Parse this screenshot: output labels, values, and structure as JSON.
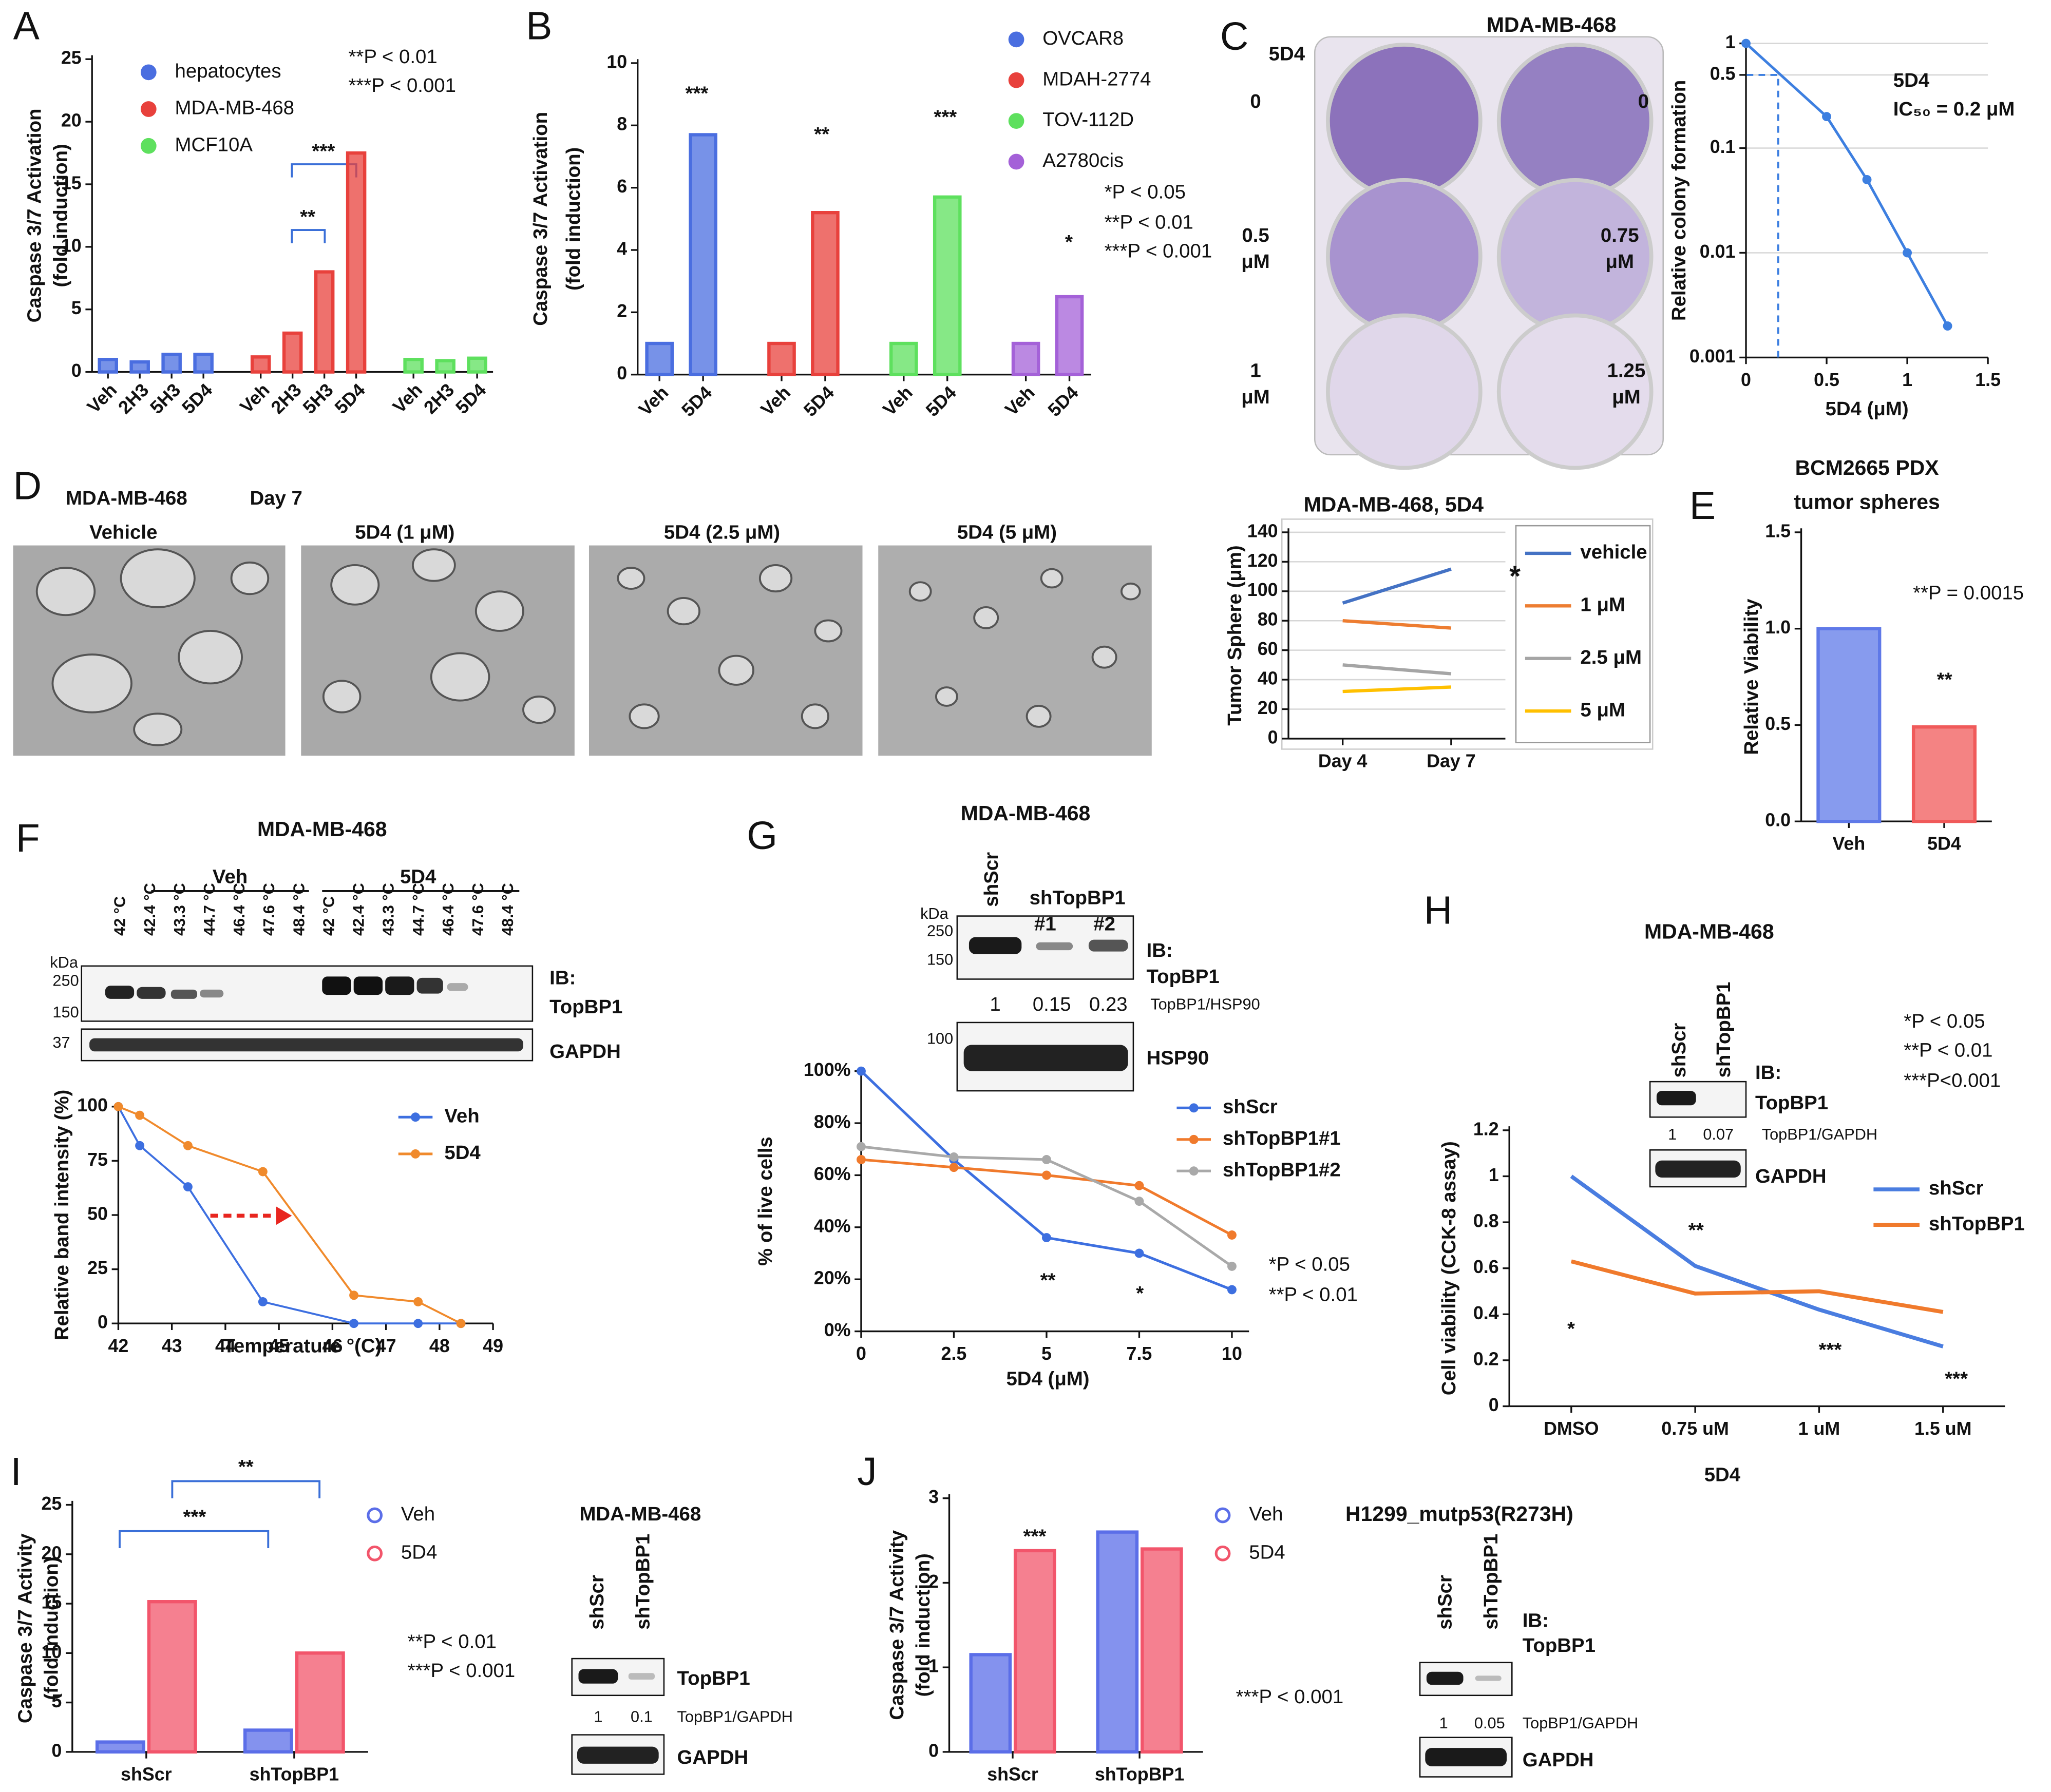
{
  "chart_data": [
    {
      "type": "bar",
      "panel": "A",
      "ylabel": [
        "Caspase 3/7 Activation",
        "(fold induction)"
      ],
      "categories": [
        "Veh",
        "2H3",
        "5H3",
        "5D4",
        "Veh",
        "2H3",
        "5H3",
        "5D4",
        "Veh",
        "2H3",
        "5D4"
      ],
      "series": [
        {
          "name": "hepatocytes",
          "color": "#4a6ee0",
          "values": [
            1.0,
            0.8,
            1.4,
            1.4,
            null,
            null,
            null,
            null,
            null,
            null,
            null
          ]
        },
        {
          "name": "MDA-MB-468",
          "color": "#e8413c",
          "values": [
            null,
            null,
            null,
            null,
            1.2,
            3.1,
            8.0,
            17.5,
            null,
            null,
            null
          ]
        },
        {
          "name": "MCF10A",
          "color": "#5ee05e",
          "values": [
            null,
            null,
            null,
            null,
            null,
            null,
            null,
            null,
            1.0,
            0.9,
            1.1
          ]
        }
      ],
      "ylim": [
        0,
        25
      ],
      "yticks": [
        0,
        5,
        10,
        15,
        20,
        25
      ],
      "legend": true,
      "texts": [
        "**P < 0.01",
        "***P < 0.001",
        "***",
        "**"
      ]
    },
    {
      "type": "bar",
      "panel": "B",
      "ylabel": [
        "Caspase 3/7 Activation",
        "(fold induction)"
      ],
      "categories": [
        "Veh",
        "5D4",
        "Veh",
        "5D4",
        "Veh",
        "5D4",
        "Veh",
        "5D4"
      ],
      "series": [
        {
          "name": "OVCAR8",
          "color": "#4a6ee0",
          "values": [
            1.0,
            7.7,
            null,
            null,
            null,
            null,
            null,
            null
          ]
        },
        {
          "name": "MDAH-2774",
          "color": "#e8413c",
          "values": [
            null,
            null,
            1.0,
            5.2,
            null,
            null,
            null,
            null
          ]
        },
        {
          "name": "TOV-112D",
          "color": "#5ee05e",
          "values": [
            null,
            null,
            null,
            null,
            1.0,
            5.7,
            null,
            null
          ]
        },
        {
          "name": "A2780cis",
          "color": "#a461d8",
          "values": [
            null,
            null,
            null,
            null,
            null,
            null,
            1.0,
            2.5
          ]
        }
      ],
      "ylim": [
        0,
        10
      ],
      "yticks": [
        0,
        2,
        4,
        6,
        8,
        10
      ],
      "legend": true,
      "texts": [
        "***",
        "**",
        "***",
        "*",
        "*P < 0.05",
        "**P < 0.01",
        "***P < 0.001"
      ]
    },
    {
      "type": "line",
      "panel": "C",
      "title": "MDA-MB-468",
      "yscale": "log",
      "x": [
        0,
        0.5,
        0.75,
        1,
        1.25
      ],
      "values": [
        1,
        0.2,
        0.05,
        0.01,
        0.002
      ],
      "color": "#3d7fe0",
      "xlim": [
        0,
        1.5
      ],
      "xticks": [
        0,
        0.5,
        1,
        1.5
      ],
      "ylim": [
        0.001,
        1
      ],
      "yticks": [
        0.001,
        0.01,
        0.1,
        0.5,
        1
      ],
      "grid": true,
      "xlabel": "5D4 (μM)",
      "ylabel": "Relative colony formation",
      "reference_lines": [
        {
          "x": 0.2,
          "y": 0.5
        }
      ],
      "texts": [
        "5D4",
        "IC₅₀ = 0.2 μM",
        "5D4",
        "0",
        "0",
        "0.5",
        "μM",
        "0.75",
        "μM",
        "1",
        "μM",
        "1.25",
        "μM"
      ]
    },
    {
      "type": "line",
      "panel": "D",
      "title": "MDA-MB-468, 5D4",
      "categories": [
        "Day 4",
        "Day 7"
      ],
      "series": [
        {
          "name": "vehicle",
          "color": "#4472c4",
          "values": [
            92,
            115
          ]
        },
        {
          "name": "1 μM",
          "color": "#ed7d31",
          "values": [
            80,
            75
          ]
        },
        {
          "name": "2.5 μM",
          "color": "#a5a5a5",
          "values": [
            50,
            44
          ]
        },
        {
          "name": "5 μM",
          "color": "#ffc000",
          "values": [
            32,
            35
          ]
        }
      ],
      "ylim": [
        0,
        140
      ],
      "yticks": [
        0,
        20,
        40,
        60,
        80,
        100,
        120,
        140
      ],
      "grid": true,
      "legend": true,
      "ylabel": "Tumor Sphere (μm)",
      "texts": [
        "*",
        "MDA-MB-468",
        "Day 7",
        "Vehicle",
        "5D4 (1 μM)",
        "5D4 (2.5 μM)",
        "5D4 (5 μM)"
      ]
    },
    {
      "type": "bar",
      "panel": "E",
      "title": [
        "BCM2665 PDX",
        "tumor spheres"
      ],
      "categories": [
        "Veh",
        "5D4"
      ],
      "values": [
        1.0,
        0.49
      ],
      "colors": [
        "#5f79e8",
        "#f05a5a"
      ],
      "ylim": [
        0,
        1.5
      ],
      "yticks": [
        {
          "value": 0,
          "label": "0.0"
        },
        0.5,
        {
          "value": 1,
          "label": "1.0"
        },
        1.5
      ],
      "ylabel": "Relative Viability",
      "texts": [
        "**P = 0.0015",
        "**"
      ]
    },
    {
      "type": "line",
      "panel": "F",
      "title": "MDA-MB-468",
      "x": [
        42,
        42.4,
        43.3,
        44.7,
        46.4,
        47.6,
        48.4
      ],
      "series": [
        {
          "name": "Veh",
          "color": "#3d6fe0",
          "values": [
            100,
            82,
            63,
            10,
            0,
            0,
            0
          ]
        },
        {
          "name": "5D4",
          "color": "#f08a2c",
          "values": [
            100,
            96,
            82,
            70,
            13,
            10,
            0
          ]
        }
      ],
      "xlim": [
        42,
        49
      ],
      "xticks": [
        42,
        43,
        44,
        45,
        46,
        47,
        48,
        49
      ],
      "ylim": [
        0,
        100
      ],
      "yticks": [
        0,
        25,
        50,
        75,
        100
      ],
      "xlabel": "Temperature °(C)",
      "ylabel": "Relative band intensity (%)",
      "legend": true,
      "texts": [
        "Veh",
        "5D4",
        "42 °C",
        "42.4 °C",
        "43.3 °C",
        "44.7 °C",
        "46.4 °C",
        "47.6 °C",
        "48.4 °C",
        "42 °C",
        "42.4 °C",
        "43.3 °C",
        "44.7 °C",
        "46.4 °C",
        "47.6 °C",
        "48.4 °C",
        "kDa",
        "250",
        "150",
        "37",
        "IB:",
        "TopBP1",
        "GAPDH"
      ]
    },
    {
      "type": "line",
      "panel": "G",
      "title": "MDA-MB-468",
      "x": [
        0,
        2.5,
        5,
        7.5,
        10
      ],
      "series": [
        {
          "name": "shScr",
          "color": "#3d6fe0",
          "values": [
            100,
            66,
            36,
            30,
            16
          ]
        },
        {
          "name": "shTopBP1#1",
          "color": "#f07a2c",
          "values": [
            66,
            63,
            60,
            56,
            37
          ]
        },
        {
          "name": "shTopBP1#2",
          "color": "#a9a9a9",
          "values": [
            71,
            67,
            66,
            50,
            25
          ]
        }
      ],
      "xlim": [
        0,
        10
      ],
      "xticks": [
        0,
        2.5,
        5,
        7.5,
        10
      ],
      "ylim": [
        0,
        100
      ],
      "yticks": [
        {
          "value": 0,
          "label": "0%"
        },
        {
          "value": 20,
          "label": "20%"
        },
        {
          "value": 40,
          "label": "40%"
        },
        {
          "value": 60,
          "label": "60%"
        },
        {
          "value": 80,
          "label": "80%"
        },
        {
          "value": 100,
          "label": "100%"
        }
      ],
      "xlabel": "5D4 (μM)",
      "ylabel": "% of live cells",
      "legend": true,
      "texts": [
        "**",
        "*",
        "*P < 0.05",
        "**P < 0.01",
        "shScr",
        "shTopBP1",
        "#1",
        "#2",
        "kDa",
        "250",
        "150",
        "IB:",
        "TopBP1",
        "1",
        "0.15",
        "0.23",
        "TopBP1/HSP90",
        "100",
        "HSP90"
      ]
    },
    {
      "type": "line",
      "panel": "H",
      "title": "MDA-MB-468",
      "categories": [
        "DMSO",
        "0.75 uM",
        "1 uM",
        "1.5 uM"
      ],
      "series": [
        {
          "name": "shScr",
          "color": "#4a7de0",
          "values": [
            1.0,
            0.61,
            0.42,
            0.26
          ]
        },
        {
          "name": "shTopBP1",
          "color": "#f07a2c",
          "values": [
            0.63,
            0.49,
            0.5,
            0.41
          ]
        }
      ],
      "ylim": [
        0,
        1.2
      ],
      "yticks": [
        0,
        0.2,
        0.4,
        0.6,
        0.8,
        1,
        1.2
      ],
      "xlabel": "5D4",
      "ylabel": "Cell viability (CCK-8 assay)",
      "legend": true,
      "texts": [
        "*",
        "**",
        "***",
        "***",
        "*P < 0.05",
        "**P < 0.01",
        "***P<0.001",
        "shScr",
        "shTopBP1",
        "IB:",
        "TopBP1",
        "1",
        "0.07",
        "TopBP1/GAPDH",
        "GAPDH"
      ]
    },
    {
      "type": "bar",
      "panel": "I",
      "categories": [
        "shScr",
        "shTopBP1"
      ],
      "series": [
        {
          "name": "Veh",
          "color": "#5b6ee8",
          "values": [
            1.0,
            2.2
          ]
        },
        {
          "name": "5D4",
          "color": "#f2556b",
          "values": [
            15.2,
            10.0
          ]
        }
      ],
      "ylim": [
        0,
        25
      ],
      "yticks": [
        0,
        5,
        10,
        15,
        20,
        25
      ],
      "ylabel": [
        "Caspase 3/7 Activity",
        "(fold induction)"
      ],
      "legend": true,
      "texts": [
        "***",
        "**",
        "**P < 0.01",
        "***P < 0.001",
        "MDA-MB-468",
        "shScr",
        "shTopBP1",
        "TopBP1",
        "1",
        "0.1",
        "TopBP1/GAPDH",
        "GAPDH"
      ]
    },
    {
      "type": "bar",
      "panel": "J",
      "title": "H1299_mutp53(R273H)",
      "categories": [
        "shScr",
        "shTopBP1"
      ],
      "series": [
        {
          "name": "Veh",
          "color": "#5b6ee8",
          "values": [
            1.15,
            2.6
          ]
        },
        {
          "name": "5D4",
          "color": "#f2556b",
          "values": [
            2.38,
            2.4
          ]
        }
      ],
      "ylim": [
        0,
        3
      ],
      "yticks": [
        0,
        1,
        2,
        3
      ],
      "ylabel": [
        "Caspase 3/7 Activity",
        "(fold induction)"
      ],
      "legend": true,
      "texts": [
        "***",
        "***P < 0.001",
        "shScr",
        "shTopBP1",
        "IB:",
        "TopBP1",
        "1",
        "0.05",
        "TopBP1/GAPDH",
        "GAPDH"
      ]
    }
  ]
}
